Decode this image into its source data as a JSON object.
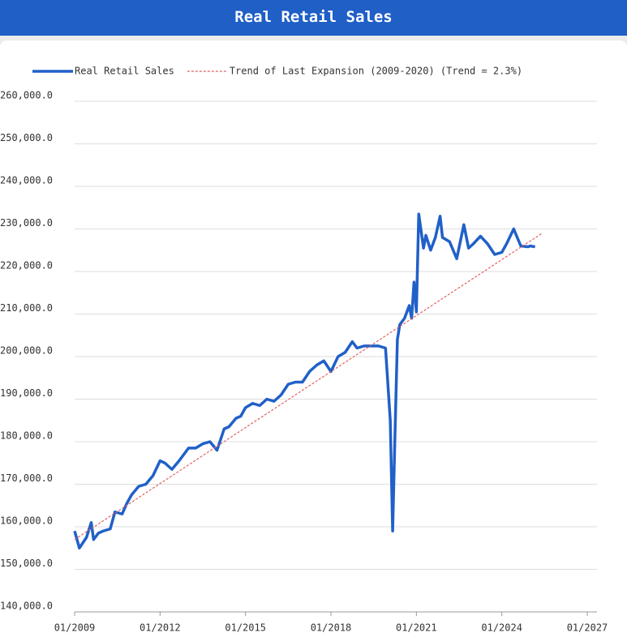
{
  "chart_data": {
    "type": "line",
    "title": "Real Retail Sales",
    "series": [
      {
        "name": "Real Retail Sales",
        "color": "#2060c8",
        "style": "solid",
        "x": [
          "01/2009",
          "03/2009",
          "06/2009",
          "08/2009",
          "09/2009",
          "11/2009",
          "01/2010",
          "04/2010",
          "06/2010",
          "09/2010",
          "11/2010",
          "01/2011",
          "04/2011",
          "07/2011",
          "10/2011",
          "01/2012",
          "03/2012",
          "06/2012",
          "09/2012",
          "01/2013",
          "04/2013",
          "07/2013",
          "10/2013",
          "01/2014",
          "04/2014",
          "06/2014",
          "09/2014",
          "11/2014",
          "01/2015",
          "04/2015",
          "07/2015",
          "10/2015",
          "01/2016",
          "04/2016",
          "07/2016",
          "10/2016",
          "01/2017",
          "04/2017",
          "07/2017",
          "10/2017",
          "01/2018",
          "04/2018",
          "07/2018",
          "10/2018",
          "12/2018",
          "03/2019",
          "06/2019",
          "09/2019",
          "12/2019",
          "02/2020",
          "03/2020",
          "04/2020",
          "05/2020",
          "06/2020",
          "08/2020",
          "10/2020",
          "11/2020",
          "12/2020",
          "01/2021",
          "02/2021",
          "03/2021",
          "04/2021",
          "05/2021",
          "07/2021",
          "09/2021",
          "11/2021",
          "12/2021",
          "03/2022",
          "06/2022",
          "09/2022",
          "11/2022",
          "01/2023",
          "04/2023",
          "07/2023",
          "10/2023",
          "01/2024",
          "03/2024",
          "06/2024",
          "09/2024",
          "12/2024",
          "01/2025",
          "03/2025"
        ],
        "values": [
          159000,
          155000,
          157500,
          161000,
          157000,
          158500,
          159000,
          159500,
          163500,
          163000,
          165500,
          167500,
          169500,
          170000,
          172000,
          175500,
          175000,
          173500,
          175500,
          178500,
          178500,
          179500,
          180000,
          178000,
          183000,
          183500,
          185500,
          186000,
          188000,
          189000,
          188500,
          190000,
          189500,
          191000,
          193500,
          194000,
          194000,
          196500,
          198000,
          199000,
          196500,
          200000,
          201000,
          203500,
          202000,
          202500,
          202500,
          202500,
          202000,
          185000,
          159000,
          182000,
          204000,
          207500,
          209000,
          212000,
          209000,
          217500,
          210500,
          233500,
          229500,
          225500,
          228500,
          225000,
          228000,
          233000,
          228000,
          227000,
          223000,
          231000,
          225500,
          226500,
          228300,
          226500,
          224000,
          224500,
          226500,
          230000,
          226000,
          225800,
          226000,
          225800
        ]
      },
      {
        "name": "Trend of Last Expansion (2009-2020) (Trend = 2.3%)",
        "color": "#e06060",
        "style": "dashed",
        "x": [
          "01/2009",
          "06/2025"
        ],
        "values": [
          157000,
          229000
        ]
      }
    ],
    "xlim": [
      "01/2009",
      "01/2027"
    ],
    "xticks": [
      "01/2009",
      "01/2012",
      "01/2015",
      "01/2018",
      "01/2021",
      "01/2024",
      "01/2027"
    ],
    "ylim": [
      140000,
      260000
    ],
    "yticks": [
      {
        "value": 140000,
        "label": "140,000.0"
      },
      {
        "value": 150000,
        "label": "150,000.0"
      },
      {
        "value": 160000,
        "label": "160,000.0"
      },
      {
        "value": 170000,
        "label": "170,000.0"
      },
      {
        "value": 180000,
        "label": "180,000.0"
      },
      {
        "value": 190000,
        "label": "190,000.0"
      },
      {
        "value": 200000,
        "label": "200,000.0"
      },
      {
        "value": 210000,
        "label": "210,000.0"
      },
      {
        "value": 220000,
        "label": "220,000.0"
      },
      {
        "value": 230000,
        "label": "230,000.0"
      },
      {
        "value": 240000,
        "label": "240,000.0"
      },
      {
        "value": 250000,
        "label": "250,000.0"
      },
      {
        "value": 260000,
        "label": "260,000.0"
      }
    ],
    "grid": true,
    "legend": "top"
  }
}
